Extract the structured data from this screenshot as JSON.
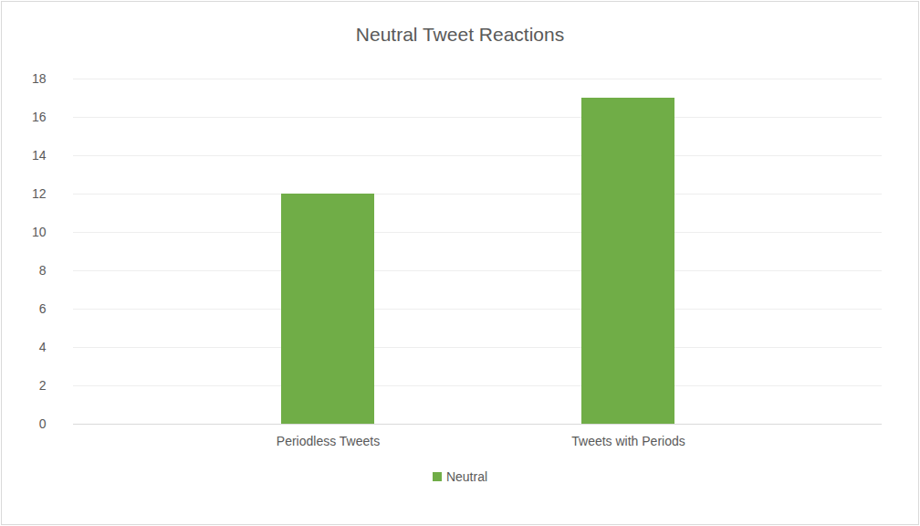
{
  "chart_data": {
    "type": "bar",
    "title": "Neutral Tweet Reactions",
    "categories": [
      "Periodless Tweets",
      "Tweets with Periods"
    ],
    "series": [
      {
        "name": "Neutral",
        "color": "#70ad47",
        "values": [
          12,
          17
        ]
      }
    ],
    "ylim": [
      0,
      18
    ],
    "yticks": [
      0,
      2,
      4,
      6,
      8,
      10,
      12,
      14,
      16,
      18
    ],
    "grid": true,
    "legend": "bottom"
  }
}
